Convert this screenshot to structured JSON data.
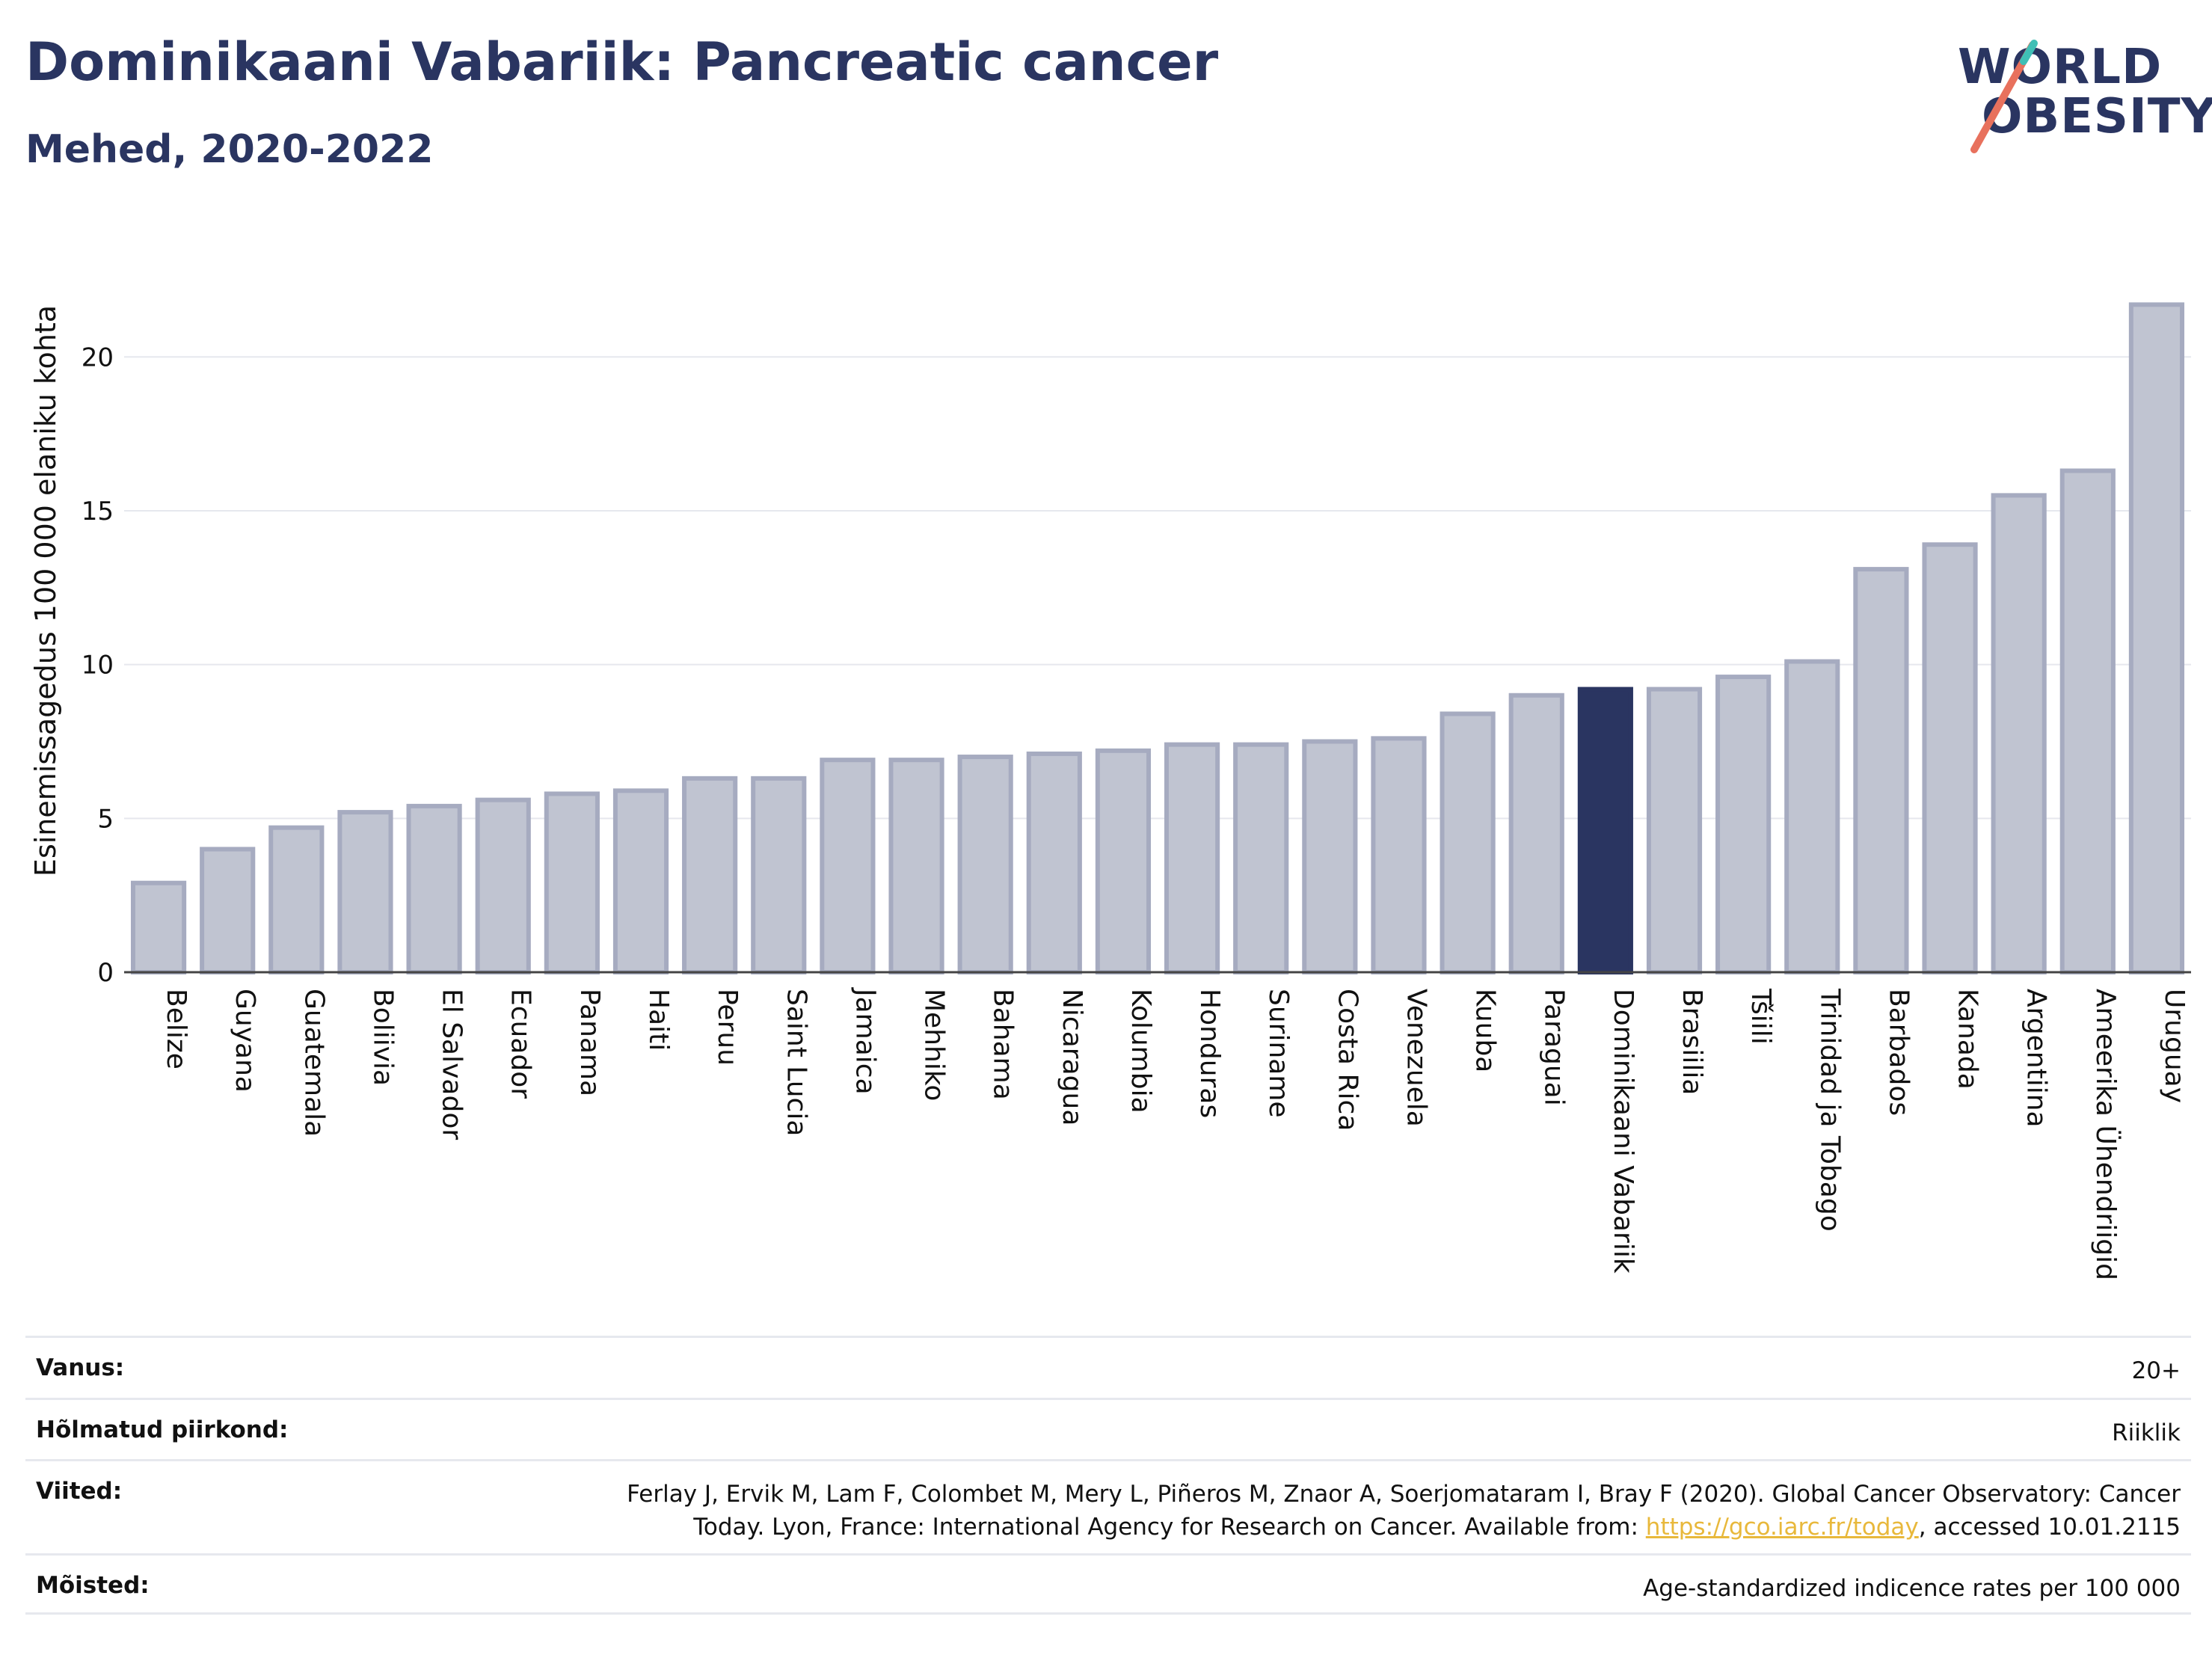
{
  "header": {
    "title": "Dominikaani Vabariik: Pancreatic cancer",
    "subtitle": "Mehed, 2020-2022"
  },
  "logo": {
    "line1": "WORLD",
    "line2": "OBESITY"
  },
  "colors": {
    "highlight": "#2a3561",
    "bar_fill": "#c0c4d1",
    "bar_stroke": "#a6abc0",
    "grid": "#e6e8ee",
    "link": "#e8b83b",
    "logo_slash_red": "#e8715d",
    "logo_slash_teal": "#3fbfb6"
  },
  "chart_data": {
    "type": "bar",
    "ylabel": "Esinemissagedus 100 000 elaniku kohta",
    "ylim": [
      0,
      22
    ],
    "yticks": [
      0,
      5,
      10,
      15,
      20
    ],
    "grid": true,
    "highlight": "Dominikaani Vabariik",
    "categories": [
      "Belize",
      "Guyana",
      "Guatemala",
      "Boliivia",
      "El Salvador",
      "Ecuador",
      "Panama",
      "Haiti",
      "Peruu",
      "Saint Lucia",
      "Jamaica",
      "Mehhiko",
      "Bahama",
      "Nicaragua",
      "Kolumbia",
      "Honduras",
      "Suriname",
      "Costa Rica",
      "Venezuela",
      "Kuuba",
      "Paraguai",
      "Dominikaani Vabariik",
      "Brasiilia",
      "Tšiili",
      "Trinidad ja Tobago",
      "Barbados",
      "Kanada",
      "Argentiina",
      "Ameerika Ühendriigid",
      "Uruguay"
    ],
    "values": [
      2.9,
      4.0,
      4.7,
      5.2,
      5.4,
      5.6,
      5.8,
      5.9,
      6.3,
      6.3,
      6.9,
      6.9,
      7.0,
      7.1,
      7.2,
      7.4,
      7.4,
      7.5,
      7.6,
      8.4,
      9.0,
      9.2,
      9.2,
      9.6,
      10.1,
      13.1,
      13.9,
      15.5,
      16.3,
      21.7
    ]
  },
  "info": {
    "rows": [
      {
        "label": "Vanus:",
        "value": "20+"
      },
      {
        "label": "Hõlmatud piirkond:",
        "value": "Riiklik"
      },
      {
        "label": "Viited:",
        "value_line1": "Ferlay J, Ervik M, Lam F, Colombet M, Mery L, Piñeros M, Znaor A, Soerjomataram I, Bray F (2020). Global Cancer Observatory: Cancer",
        "value_line2_pre": "Today. Lyon, France: International Agency for Research on Cancer. Available from: ",
        "link": "https://gco.iarc.fr/today",
        "value_line2_post": ", accessed 10.01.2115"
      },
      {
        "label": "Mõisted:",
        "value": "Age-standardized indicence rates per 100 000"
      }
    ]
  }
}
